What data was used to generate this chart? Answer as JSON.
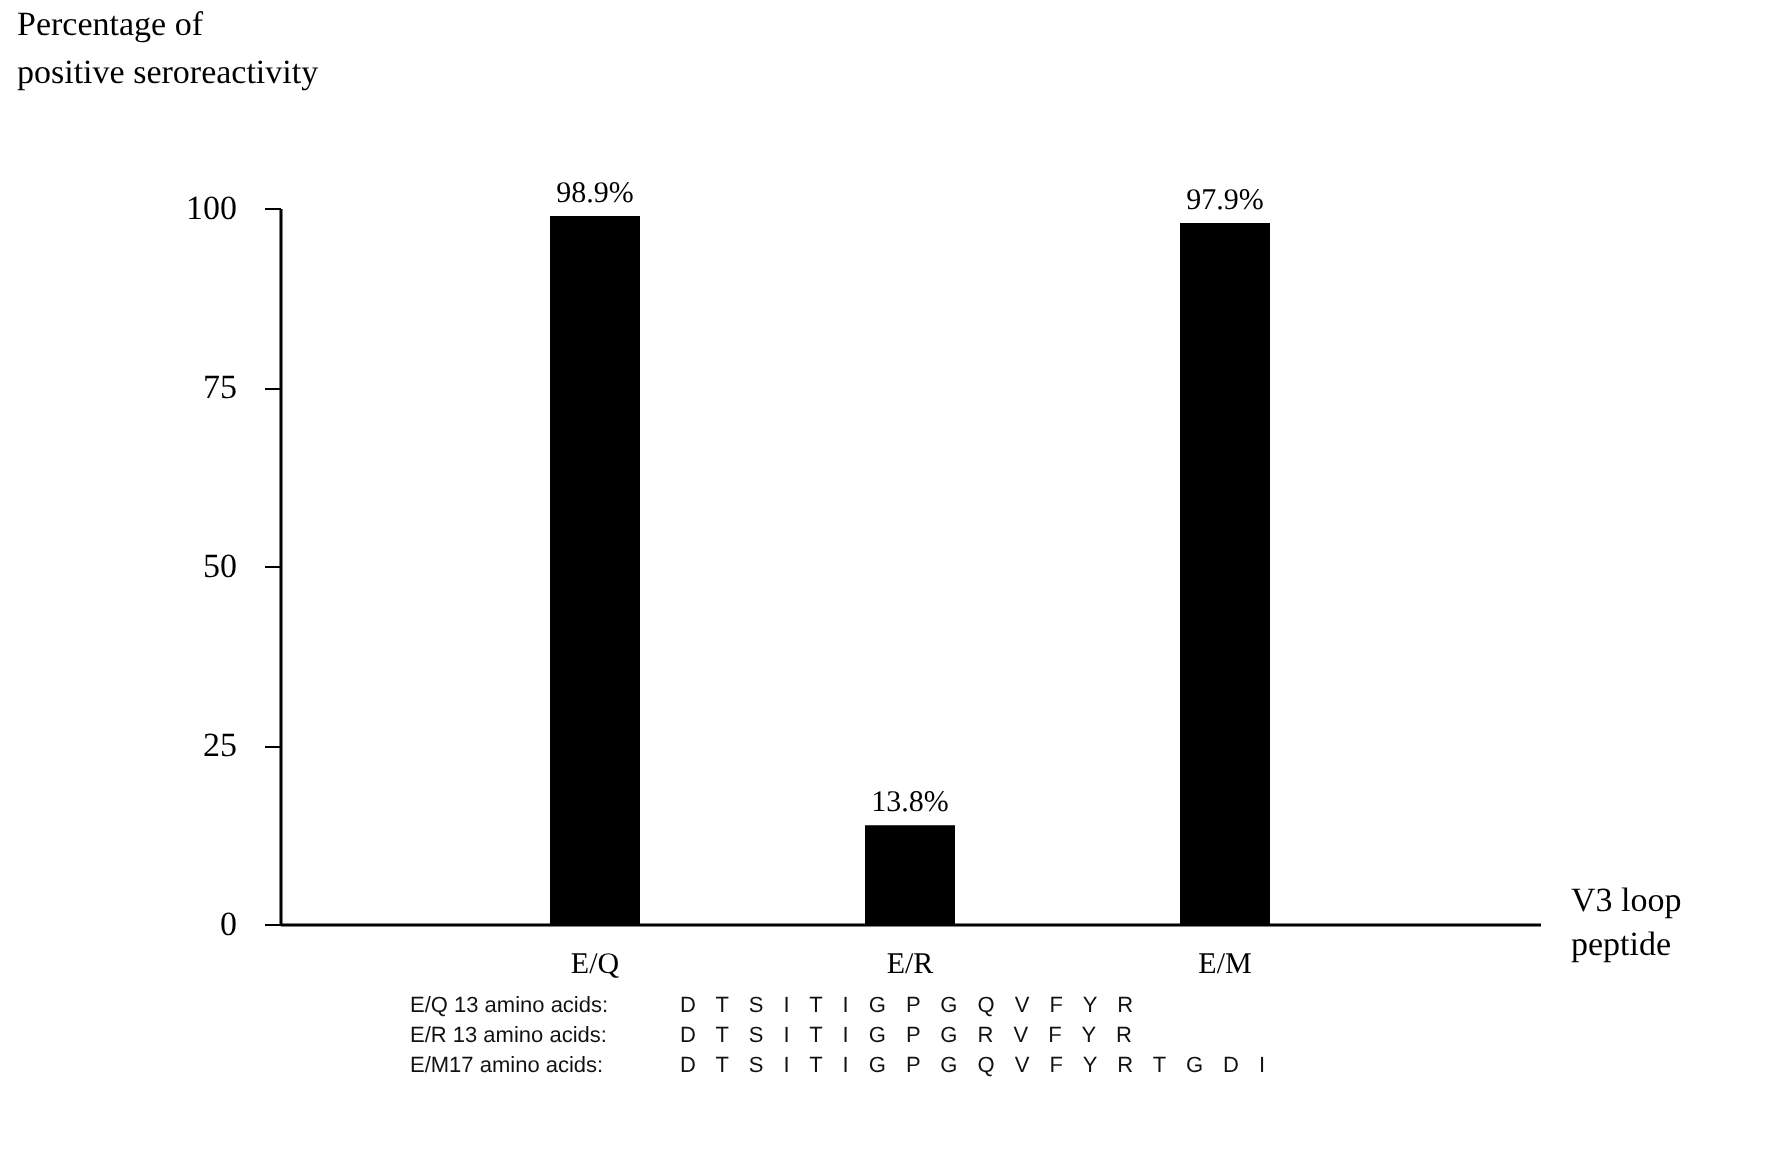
{
  "chart_data": {
    "type": "bar",
    "ylabel": "Percentage of\npositive seroreactivity",
    "xlabel": "V3 loop\npeptide",
    "categories": [
      "E/Q",
      "E/R",
      "E/M"
    ],
    "values": [
      98.9,
      13.8,
      97.9
    ],
    "value_labels": [
      "98.9%",
      "13.8%",
      "97.9%"
    ],
    "color": "#000000",
    "ylim": [
      0,
      100
    ],
    "yticks": [
      0,
      25,
      50,
      75,
      100
    ],
    "annotations": [
      "E/Q 13 amino acids:",
      "D T S I T I G P G Q V F Y R",
      "E/R 13 amino acids:",
      "D T S I T I G P G R V F Y R",
      "E/M17 amino acids:",
      "D T S I T I G P G Q V F Y R T G D I"
    ]
  }
}
